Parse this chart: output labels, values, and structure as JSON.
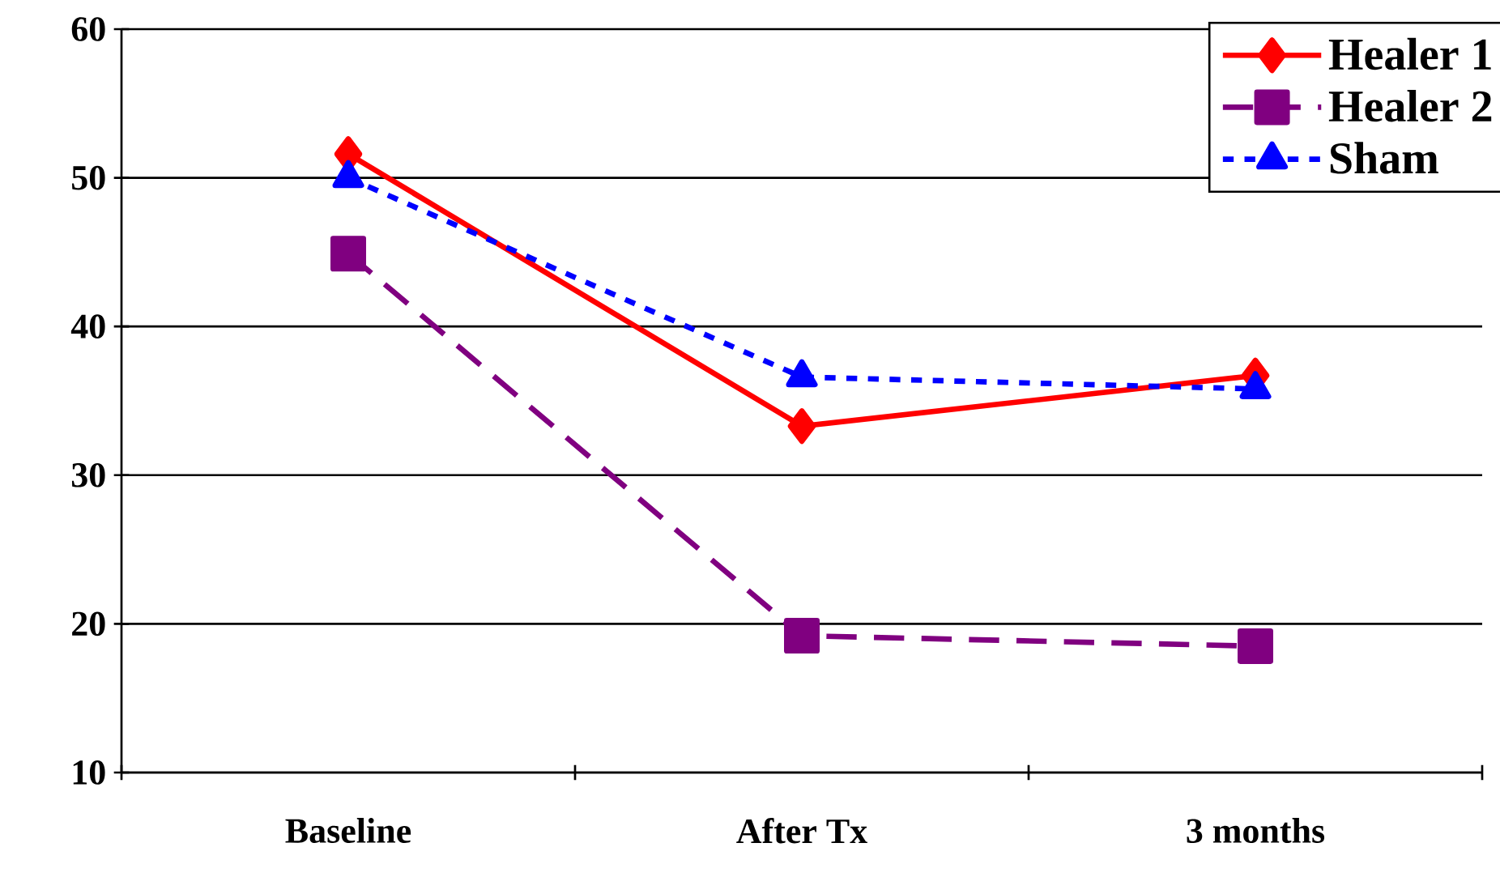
{
  "chart_data": {
    "type": "line",
    "categories": [
      "Baseline",
      "After Tx",
      "3 months"
    ],
    "series": [
      {
        "name": "Healer 1",
        "color": "#ff0000",
        "values": [
          51.6,
          33.3,
          36.7
        ],
        "marker": "diamond",
        "line_style": "solid"
      },
      {
        "name": "Healer 2",
        "color": "#800080",
        "values": [
          44.9,
          19.2,
          18.5
        ],
        "marker": "square",
        "line_style": "dashed"
      },
      {
        "name": "Sham",
        "color": "#0000ff",
        "values": [
          50.0,
          36.6,
          35.8
        ],
        "marker": "triangle",
        "line_style": "dotted"
      }
    ],
    "ylim": [
      10,
      60
    ],
    "yticks": [
      10,
      20,
      30,
      40,
      50,
      60
    ],
    "grid": "y",
    "legend": "top right"
  }
}
